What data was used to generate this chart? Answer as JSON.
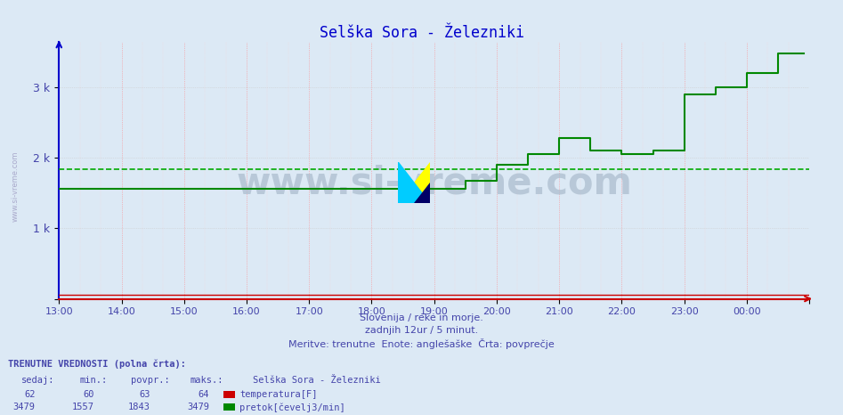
{
  "title": "Selška Sora - Železniki",
  "title_color": "#0000cc",
  "bg_color": "#dce9f5",
  "plot_bg_color": "#dce9f5",
  "xlabel_color": "#4444aa",
  "ylabel_color": "#4444aa",
  "ylim": [
    0,
    3650
  ],
  "yticks": [
    0,
    1000,
    2000,
    3000
  ],
  "ytick_labels": [
    "",
    "1 k",
    "2 k",
    "3 k"
  ],
  "xtick_labels": [
    "13:00",
    "14:00",
    "15:00",
    "16:00",
    "17:00",
    "18:00",
    "19:00",
    "20:00",
    "21:00",
    "22:00",
    "23:00",
    "00:00",
    ""
  ],
  "flow_avg": 1843,
  "flow_color": "#008800",
  "temp_color": "#cc0000",
  "avg_line_color": "#00aa00",
  "watermark": "www.si-vreme.com",
  "temp_sedaj": 62,
  "temp_min": 60,
  "temp_povpr": 63,
  "temp_maks": 64,
  "flow_sedaj": 3479,
  "flow_min": 1557,
  "flow_povpr": 1843,
  "flow_maks": 3479,
  "station_name": "Selška Sora - Železniki",
  "bottom_label1": "TRENUTNE VREDNOSTI (polna črta):",
  "col_header": "sedaj:    min.:    povpr.:    maks.:",
  "label_temp": "temperatura[F]",
  "label_flow": "pretok[čevelj3/min]",
  "sub1": "Slovenija / reke in morje.",
  "sub2": "zadnjih 12ur / 5 minut.",
  "sub3": "Meritve: trenutne  Enote: anglešaške  Črta: povprečje",
  "sidebar": "www.si-vreme.com"
}
